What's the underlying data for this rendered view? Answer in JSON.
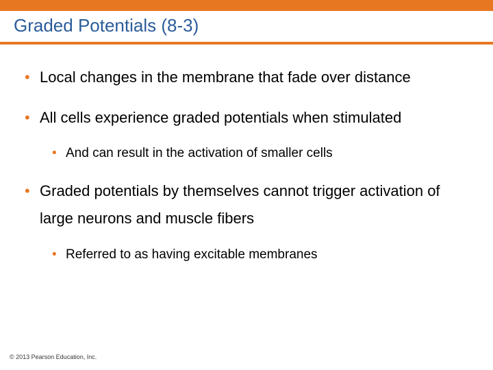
{
  "colors": {
    "accent": "#e87722",
    "title": "#2a5c9a",
    "body_text": "#000000",
    "underline": "#e87722",
    "bullet1": "#e87722",
    "bullet2": "#e87722",
    "footer": "#383838",
    "background": "#ffffff"
  },
  "typography": {
    "title_fontsize": 26,
    "title_weight": "400",
    "bullet1_fontsize": 22,
    "bullet2_fontsize": 19,
    "footer_fontsize": 9
  },
  "layout": {
    "top_bar_height": 16,
    "underline_thickness": 4,
    "slide_width": 720,
    "slide_height": 540
  },
  "title": "Graded Potentials (8-3)",
  "bullets": [
    {
      "text": "Local changes in the membrane that fade over distance",
      "children": []
    },
    {
      "text": "All cells experience graded potentials when stimulated",
      "children": [
        {
          "text": "And can result in the activation of smaller cells"
        }
      ]
    },
    {
      "text": "Graded potentials by themselves cannot trigger activation of large neurons and muscle fibers",
      "children": [
        {
          "text": "Referred to as having excitable membranes"
        }
      ]
    }
  ],
  "footer": "© 2013 Pearson Education, Inc."
}
